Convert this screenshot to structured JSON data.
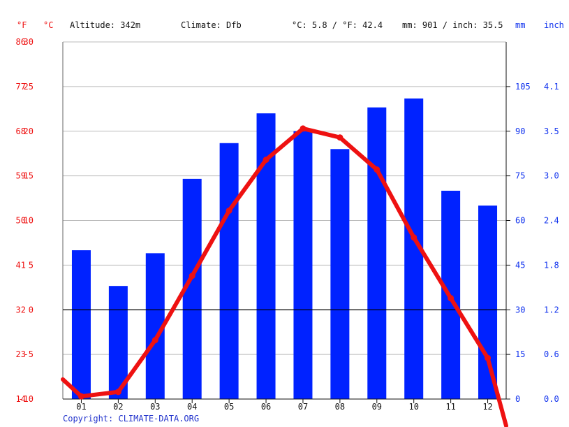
{
  "header": {
    "unit_f": "°F",
    "unit_c": "°C",
    "altitude": "Altitude: 342m",
    "climate": "Climate: Dfb",
    "avg_temp": "°C: 5.8 / °F: 42.4",
    "precip_total": "mm: 901 / inch: 35.5",
    "unit_mm": "mm",
    "unit_inch": "inch"
  },
  "footer": {
    "copyright": "Copyright: CLIMATE-DATA.ORG"
  },
  "colors": {
    "temperature": "#ee1111",
    "precipitation": "#0022ff",
    "grid": "#bbbbbb",
    "zero_line": "#000000"
  },
  "chart_data": {
    "type": "bar",
    "categories": [
      "01",
      "02",
      "03",
      "04",
      "05",
      "06",
      "07",
      "08",
      "09",
      "10",
      "11",
      "12"
    ],
    "series": [
      {
        "type": "bar",
        "axis": "right",
        "values": [
          50,
          38,
          49,
          74,
          86,
          96,
          90,
          84,
          98,
          101,
          70,
          65
        ]
      },
      {
        "type": "line",
        "axis": "left",
        "values": [
          -9.7,
          -9.2,
          -3.4,
          3.8,
          11.1,
          16.8,
          20.3,
          19.3,
          15.7,
          8.1,
          1.3,
          -5.4
        ]
      }
    ],
    "line_edges": {
      "left": -7.8,
      "right": -13.0
    },
    "left_axis": {
      "celsius_ticks": [
        "30",
        "25",
        "20",
        "15",
        "10",
        "5",
        "0",
        "-5",
        "-10"
      ],
      "fahrenheit_ticks": [
        "86",
        "77",
        "68",
        "59",
        "50",
        "41",
        "32",
        "23",
        "14"
      ],
      "range_c": [
        -10,
        30
      ]
    },
    "right_axis": {
      "mm_ticks": [
        "105",
        "90",
        "75",
        "60",
        "45",
        "30",
        "15",
        "0"
      ],
      "inch_ticks": [
        "4.1",
        "3.5",
        "3.0",
        "2.4",
        "1.8",
        "1.2",
        "0.6",
        "0.0"
      ],
      "range_mm": [
        0,
        120
      ]
    },
    "grid": true
  }
}
